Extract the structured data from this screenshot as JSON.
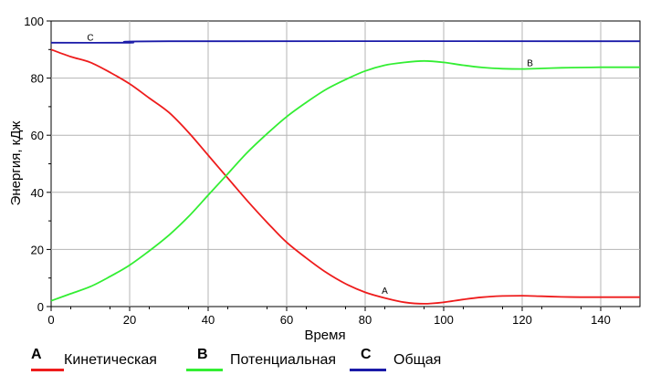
{
  "chart_data": {
    "type": "line",
    "title": "",
    "xlabel": "Время",
    "ylabel": "Энергия, кДж",
    "xlim": [
      0,
      150
    ],
    "ylim": [
      0,
      100
    ],
    "xticks": [
      0,
      20,
      40,
      60,
      80,
      100,
      120,
      140
    ],
    "yticks": [
      0,
      20,
      40,
      60,
      80,
      100
    ],
    "grid": true,
    "legend_position": "bottom",
    "series": [
      {
        "letter": "A",
        "name": "Кинетическая",
        "color": "#ee1c1c",
        "x": [
          0,
          5,
          10,
          15,
          20,
          25,
          30,
          35,
          40,
          45,
          50,
          55,
          60,
          65,
          70,
          75,
          80,
          85,
          90,
          95,
          100,
          105,
          110,
          115,
          120,
          125,
          130,
          135,
          140,
          145,
          150
        ],
        "y": [
          90,
          87.5,
          85.5,
          82,
          78,
          73,
          68,
          61,
          53,
          45,
          37,
          29.5,
          22.5,
          17,
          12,
          8,
          5,
          3,
          1.5,
          1,
          1.5,
          2.5,
          3.3,
          3.7,
          3.8,
          3.6,
          3.4,
          3.3,
          3.3,
          3.3,
          3.3
        ]
      },
      {
        "letter": "B",
        "name": "Потенциальная",
        "color": "#33ee33",
        "x": [
          0,
          5,
          10,
          15,
          20,
          25,
          30,
          35,
          40,
          45,
          50,
          55,
          60,
          65,
          70,
          75,
          80,
          85,
          90,
          95,
          100,
          105,
          110,
          115,
          120,
          125,
          130,
          135,
          140,
          145,
          150
        ],
        "y": [
          2,
          4.5,
          7,
          10.5,
          14.5,
          19.5,
          25,
          31.5,
          39,
          46.5,
          54,
          60.5,
          66.5,
          71.5,
          76,
          79.5,
          82.5,
          84.5,
          85.5,
          86,
          85.5,
          84.5,
          83.7,
          83.3,
          83.2,
          83.4,
          83.6,
          83.7,
          83.8,
          83.8,
          83.8
        ]
      },
      {
        "letter": "C",
        "name": "Общая",
        "color": "#1a1aa8",
        "x": [
          0,
          20,
          30,
          150
        ],
        "y": [
          92.4,
          92.4,
          92.9,
          92.9
        ]
      }
    ],
    "series_tags": [
      {
        "text": "A",
        "x": 85,
        "y": 4.5
      },
      {
        "text": "B",
        "x": 122,
        "y": 84.2
      },
      {
        "text": "C",
        "x": 10,
        "y": 93.2
      }
    ]
  }
}
